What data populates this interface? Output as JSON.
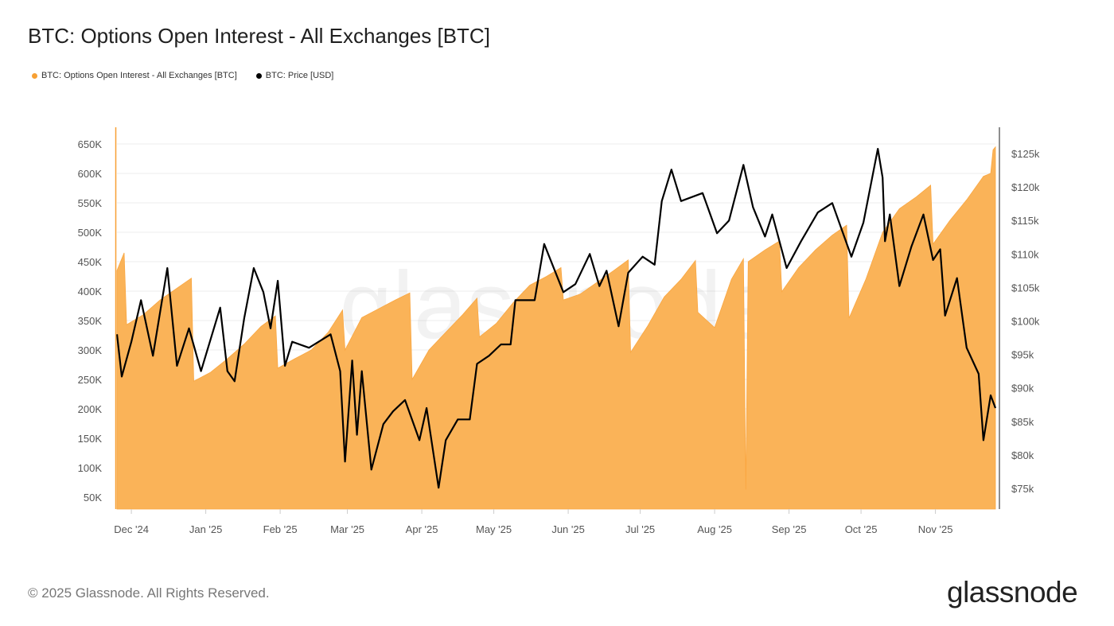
{
  "title": "BTC: Options Open Interest - All Exchanges [BTC]",
  "legend": [
    {
      "label": "BTC: Options Open Interest - All Exchanges [BTC]",
      "color": "#f7a034"
    },
    {
      "label": "BTC: Price [USD]",
      "color": "#000000"
    }
  ],
  "footer": "© 2025 Glassnode. All Rights Reserved.",
  "logo": "glassnode",
  "watermark": "glassnode",
  "chart_data": {
    "type": "area",
    "title": "BTC: Options Open Interest - All Exchanges [BTC]",
    "x_range": [
      "2024-11-25",
      "2025-11-26"
    ],
    "x_ticks": [
      "Dec '24",
      "Jan '25",
      "Feb '25",
      "Mar '25",
      "Apr '25",
      "May '25",
      "Jun '25",
      "Jul '25",
      "Aug '25",
      "Sep '25",
      "Oct '25",
      "Nov '25"
    ],
    "x_tick_dates": [
      "2024-12-01",
      "2025-01-01",
      "2025-02-01",
      "2025-03-01",
      "2025-04-01",
      "2025-05-01",
      "2025-06-01",
      "2025-07-01",
      "2025-08-01",
      "2025-09-01",
      "2025-10-01",
      "2025-11-01"
    ],
    "y_left": {
      "ticks": [
        "50K",
        "100K",
        "150K",
        "200K",
        "250K",
        "300K",
        "350K",
        "400K",
        "450K",
        "500K",
        "550K",
        "600K",
        "650K"
      ],
      "tick_values": [
        50,
        100,
        150,
        200,
        250,
        300,
        350,
        400,
        450,
        500,
        550,
        600,
        650
      ],
      "unit": "thousand BTC"
    },
    "y_right": {
      "ticks": [
        "$75k",
        "$80k",
        "$85k",
        "$90k",
        "$95k",
        "$100k",
        "$105k",
        "$110k",
        "$115k",
        "$120k",
        "$125k"
      ],
      "tick_values": [
        75,
        80,
        85,
        90,
        95,
        100,
        105,
        110,
        115,
        120,
        125
      ],
      "unit": "thousand USD"
    },
    "grid": true,
    "legend_placement": "top-left",
    "series": [
      {
        "name": "BTC: Options Open Interest - All Exchanges [BTC]",
        "type": "area",
        "axis": "left",
        "color": "#fab358",
        "points": [
          [
            "2024-11-25",
            435
          ],
          [
            "2024-11-28",
            465
          ],
          [
            "2024-11-29",
            343
          ],
          [
            "2024-12-06",
            360
          ],
          [
            "2024-12-13",
            385
          ],
          [
            "2024-12-20",
            405
          ],
          [
            "2024-12-26",
            422
          ],
          [
            "2024-12-27",
            247
          ],
          [
            "2025-01-03",
            262
          ],
          [
            "2025-01-10",
            285
          ],
          [
            "2025-01-17",
            310
          ],
          [
            "2025-01-24",
            340
          ],
          [
            "2025-01-30",
            358
          ],
          [
            "2025-01-31",
            269
          ],
          [
            "2025-02-07",
            285
          ],
          [
            "2025-02-14",
            300
          ],
          [
            "2025-02-21",
            330
          ],
          [
            "2025-02-27",
            368
          ],
          [
            "2025-02-28",
            300
          ],
          [
            "2025-03-07",
            355
          ],
          [
            "2025-03-14",
            370
          ],
          [
            "2025-03-21",
            385
          ],
          [
            "2025-03-27",
            397
          ],
          [
            "2025-03-28",
            250
          ],
          [
            "2025-04-04",
            300
          ],
          [
            "2025-04-11",
            330
          ],
          [
            "2025-04-18",
            360
          ],
          [
            "2025-04-24",
            388
          ],
          [
            "2025-04-25",
            322
          ],
          [
            "2025-05-02",
            345
          ],
          [
            "2025-05-09",
            380
          ],
          [
            "2025-05-16",
            410
          ],
          [
            "2025-05-23",
            425
          ],
          [
            "2025-05-29",
            440
          ],
          [
            "2025-05-30",
            385
          ],
          [
            "2025-06-06",
            395
          ],
          [
            "2025-06-13",
            415
          ],
          [
            "2025-06-20",
            435
          ],
          [
            "2025-06-26",
            453
          ],
          [
            "2025-06-27",
            296
          ],
          [
            "2025-07-04",
            340
          ],
          [
            "2025-07-11",
            390
          ],
          [
            "2025-07-18",
            420
          ],
          [
            "2025-07-24",
            452
          ],
          [
            "2025-07-25",
            364
          ],
          [
            "2025-08-01",
            338
          ],
          [
            "2025-08-08",
            420
          ],
          [
            "2025-08-13",
            455
          ],
          [
            "2025-08-14",
            63
          ],
          [
            "2025-08-15",
            450
          ],
          [
            "2025-08-22",
            470
          ],
          [
            "2025-08-28",
            485
          ],
          [
            "2025-08-29",
            399
          ],
          [
            "2025-09-05",
            440
          ],
          [
            "2025-09-12",
            470
          ],
          [
            "2025-09-19",
            495
          ],
          [
            "2025-09-25",
            512
          ],
          [
            "2025-09-26",
            354
          ],
          [
            "2025-10-03",
            420
          ],
          [
            "2025-10-10",
            500
          ],
          [
            "2025-10-17",
            540
          ],
          [
            "2025-10-24",
            560
          ],
          [
            "2025-10-30",
            580
          ],
          [
            "2025-10-31",
            480
          ],
          [
            "2025-11-07",
            520
          ],
          [
            "2025-11-14",
            555
          ],
          [
            "2025-11-21",
            595
          ],
          [
            "2025-11-24",
            600
          ],
          [
            "2025-11-25",
            640
          ],
          [
            "2025-11-26",
            645
          ]
        ]
      },
      {
        "name": "BTC: Price [USD]",
        "type": "line",
        "axis": "right",
        "color": "#000000",
        "points": [
          [
            "2024-11-25",
            98.0
          ],
          [
            "2024-11-27",
            91.7
          ],
          [
            "2024-12-01",
            96.9
          ],
          [
            "2024-12-05",
            103.1
          ],
          [
            "2024-12-10",
            94.8
          ],
          [
            "2024-12-16",
            107.9
          ],
          [
            "2024-12-20",
            93.3
          ],
          [
            "2024-12-25",
            98.9
          ],
          [
            "2024-12-30",
            92.5
          ],
          [
            "2025-01-07",
            102.0
          ],
          [
            "2025-01-10",
            92.5
          ],
          [
            "2025-01-13",
            91.0
          ],
          [
            "2025-01-17",
            100.4
          ],
          [
            "2025-01-21",
            107.9
          ],
          [
            "2025-01-25",
            104.3
          ],
          [
            "2025-01-28",
            98.9
          ],
          [
            "2025-01-31",
            106.0
          ],
          [
            "2025-02-03",
            93.3
          ],
          [
            "2025-02-06",
            96.9
          ],
          [
            "2025-02-13",
            96.0
          ],
          [
            "2025-02-22",
            98.0
          ],
          [
            "2025-02-26",
            92.5
          ],
          [
            "2025-02-28",
            79.0
          ],
          [
            "2025-03-03",
            94.1
          ],
          [
            "2025-03-05",
            83.0
          ],
          [
            "2025-03-07",
            92.5
          ],
          [
            "2025-03-11",
            77.8
          ],
          [
            "2025-03-16",
            84.6
          ],
          [
            "2025-03-20",
            86.5
          ],
          [
            "2025-03-25",
            88.2
          ],
          [
            "2025-03-31",
            82.2
          ],
          [
            "2025-04-03",
            87.0
          ],
          [
            "2025-04-08",
            75.1
          ],
          [
            "2025-04-11",
            82.2
          ],
          [
            "2025-04-16",
            85.3
          ],
          [
            "2025-04-21",
            85.3
          ],
          [
            "2025-04-24",
            93.6
          ],
          [
            "2025-04-29",
            94.8
          ],
          [
            "2025-05-04",
            96.5
          ],
          [
            "2025-05-08",
            96.5
          ],
          [
            "2025-05-10",
            103.1
          ],
          [
            "2025-05-18",
            103.1
          ],
          [
            "2025-05-22",
            111.5
          ],
          [
            "2025-05-30",
            104.3
          ],
          [
            "2025-06-04",
            105.5
          ],
          [
            "2025-06-10",
            110.0
          ],
          [
            "2025-06-14",
            105.2
          ],
          [
            "2025-06-17",
            107.5
          ],
          [
            "2025-06-22",
            99.2
          ],
          [
            "2025-06-26",
            107.2
          ],
          [
            "2025-07-02",
            109.6
          ],
          [
            "2025-07-07",
            108.4
          ],
          [
            "2025-07-10",
            117.9
          ],
          [
            "2025-07-14",
            122.6
          ],
          [
            "2025-07-18",
            117.9
          ],
          [
            "2025-07-27",
            119.1
          ],
          [
            "2025-08-02",
            113.1
          ],
          [
            "2025-08-07",
            115.0
          ],
          [
            "2025-08-13",
            123.3
          ],
          [
            "2025-08-17",
            117.0
          ],
          [
            "2025-08-22",
            112.6
          ],
          [
            "2025-08-25",
            115.9
          ],
          [
            "2025-08-31",
            107.9
          ],
          [
            "2025-09-06",
            111.9
          ],
          [
            "2025-09-13",
            116.2
          ],
          [
            "2025-09-19",
            117.6
          ],
          [
            "2025-09-27",
            109.6
          ],
          [
            "2025-10-02",
            114.7
          ],
          [
            "2025-10-08",
            125.7
          ],
          [
            "2025-10-10",
            121.4
          ],
          [
            "2025-10-11",
            111.9
          ],
          [
            "2025-10-13",
            115.9
          ],
          [
            "2025-10-17",
            105.2
          ],
          [
            "2025-10-22",
            111.1
          ],
          [
            "2025-10-27",
            115.9
          ],
          [
            "2025-10-31",
            109.1
          ],
          [
            "2025-11-03",
            110.7
          ],
          [
            "2025-11-05",
            100.8
          ],
          [
            "2025-11-10",
            106.4
          ],
          [
            "2025-11-14",
            96.0
          ],
          [
            "2025-11-19",
            92.1
          ],
          [
            "2025-11-21",
            82.2
          ],
          [
            "2025-11-24",
            88.9
          ],
          [
            "2025-11-26",
            87.0
          ]
        ]
      }
    ]
  }
}
